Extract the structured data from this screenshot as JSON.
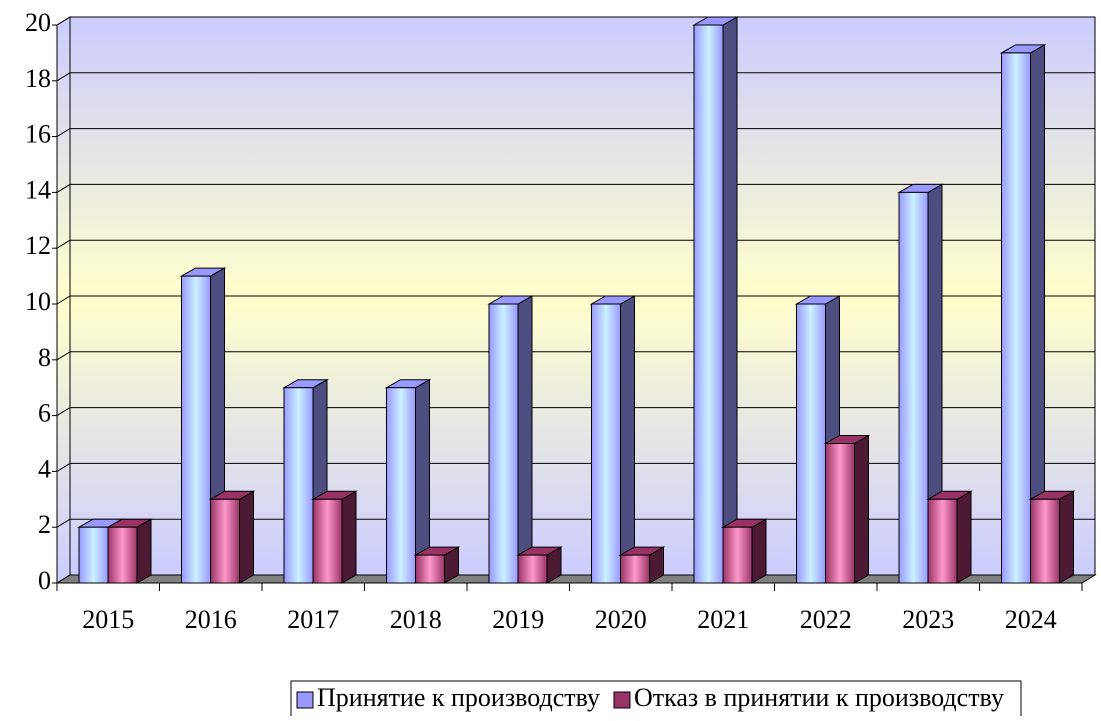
{
  "chart_data": {
    "type": "bar3d",
    "categories": [
      "2015",
      "2016",
      "2017",
      "2018",
      "2019",
      "2020",
      "2021",
      "2022",
      "2023",
      "2024"
    ],
    "series": [
      {
        "name": "Принятие к производству",
        "color": "#9999ff",
        "values": [
          2,
          11,
          7,
          7,
          10,
          10,
          20,
          10,
          14,
          19
        ]
      },
      {
        "name": "Отказ в принятии к производству",
        "color": "#993366",
        "values": [
          2,
          3,
          3,
          1,
          1,
          1,
          2,
          5,
          3,
          3
        ]
      }
    ],
    "ylim": [
      0,
      20
    ],
    "yticks": [
      0,
      2,
      4,
      6,
      8,
      10,
      12,
      14,
      16,
      18,
      20
    ],
    "grid": true,
    "legend": "bottom"
  }
}
